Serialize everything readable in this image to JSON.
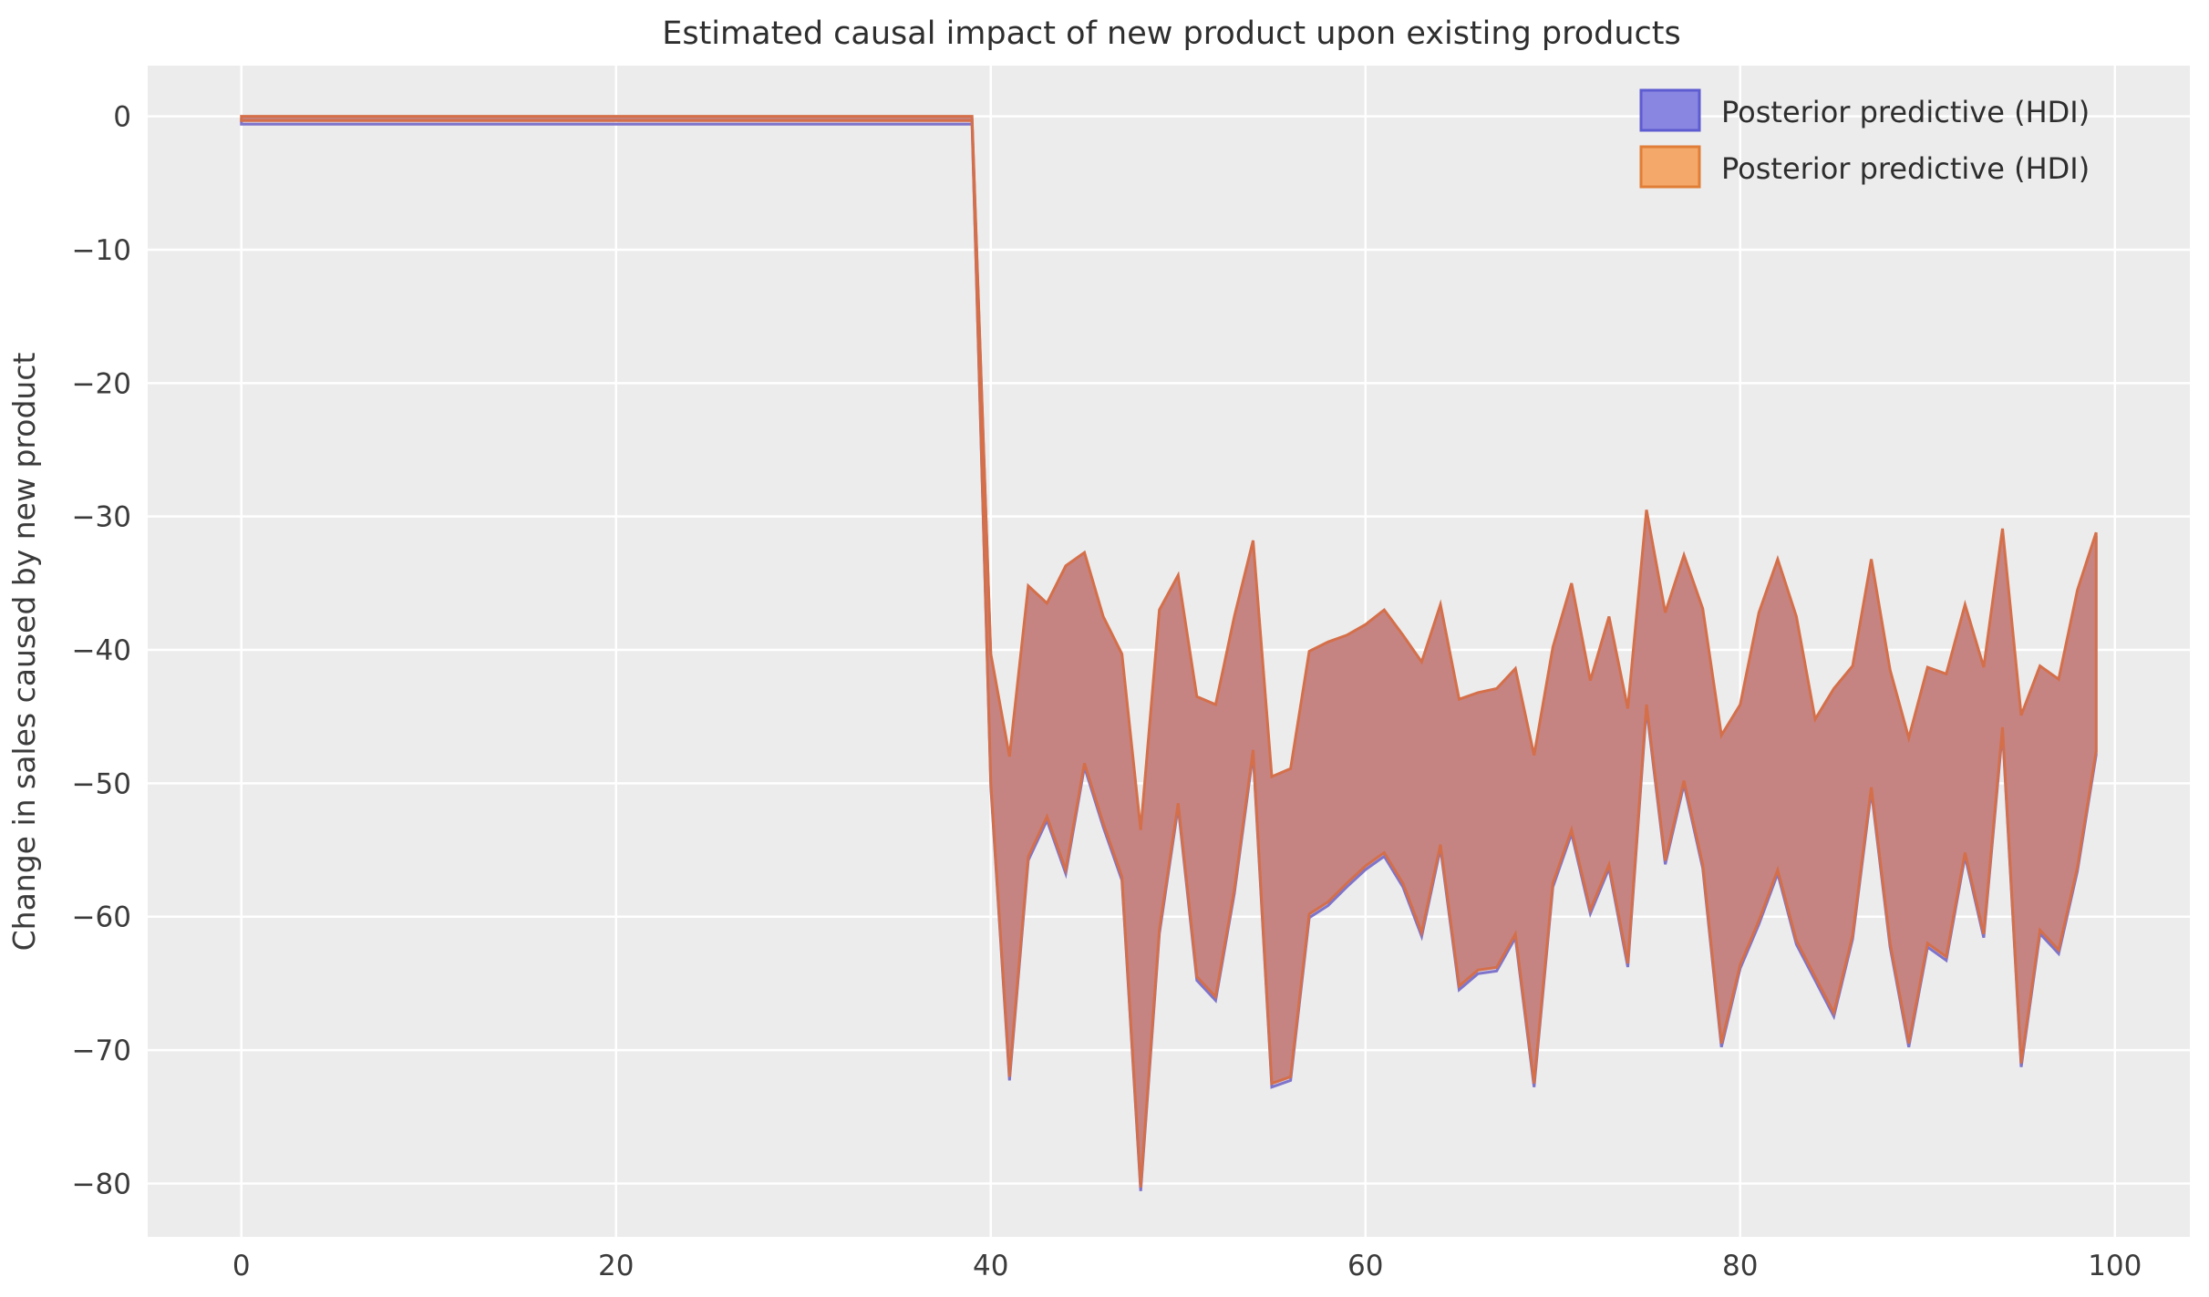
{
  "chart_data": {
    "type": "area",
    "title": "Estimated causal impact of new product upon existing products",
    "xlabel": "",
    "ylabel": "Change in sales caused by new product",
    "xticks": [
      0,
      20,
      40,
      60,
      80,
      100
    ],
    "yticks": [
      0,
      -10,
      -20,
      -30,
      -40,
      -50,
      -60,
      -70,
      -80
    ],
    "xlim": [
      -5,
      104
    ],
    "ylim": [
      -84,
      3.8
    ],
    "grid": true,
    "legend_position": "upper right",
    "legend": [
      {
        "label": "Posterior predictive (HDI)",
        "fill": "#8886e0",
        "edge": "#5e5cd1"
      },
      {
        "label": "Posterior predictive (HDI)",
        "fill": "#f4a869",
        "edge": "#e07e38"
      }
    ],
    "band": {
      "description": "Two overlapping HDI bands (blue and orange posterior predictive) that coincide, appearing rose-brown; flat at 0 before intervention at x=40, then shifted to roughly -30..-80 after.",
      "x": [
        0,
        1,
        2,
        3,
        4,
        5,
        6,
        7,
        8,
        9,
        10,
        11,
        12,
        13,
        14,
        15,
        16,
        17,
        18,
        19,
        20,
        21,
        22,
        23,
        24,
        25,
        26,
        27,
        28,
        29,
        30,
        31,
        32,
        33,
        34,
        35,
        36,
        37,
        38,
        39,
        40,
        41,
        42,
        43,
        44,
        45,
        46,
        47,
        48,
        49,
        50,
        51,
        52,
        53,
        54,
        55,
        56,
        57,
        58,
        59,
        60,
        61,
        62,
        63,
        64,
        65,
        66,
        67,
        68,
        69,
        70,
        71,
        72,
        73,
        74,
        75,
        76,
        77,
        78,
        79,
        80,
        81,
        82,
        83,
        84,
        85,
        86,
        87,
        88,
        89,
        90,
        91,
        92,
        93,
        94,
        95,
        96,
        97,
        98,
        99
      ],
      "upper": [
        0,
        0,
        0,
        0,
        0,
        0,
        0,
        0,
        0,
        0,
        0,
        0,
        0,
        0,
        0,
        0,
        0,
        0,
        0,
        0,
        0,
        0,
        0,
        0,
        0,
        0,
        0,
        0,
        0,
        0,
        0,
        0,
        0,
        0,
        0,
        0,
        0,
        0,
        0,
        0,
        -40.3,
        -48,
        -35.2,
        -36.5,
        -33.7,
        -32.7,
        -37.5,
        -40.3,
        -53.5,
        -37,
        -34.4,
        -43.5,
        -44.1,
        -37.5,
        -31.8,
        -49.5,
        -48.9,
        -40.1,
        -39.4,
        -38.9,
        -38.1,
        -37,
        -38.9,
        -40.9,
        -36.6,
        -43.7,
        -43.2,
        -42.9,
        -41.4,
        -47.9,
        -39.8,
        -35,
        -42.3,
        -37.5,
        -44.4,
        -29.5,
        -37.2,
        -32.9,
        -36.9,
        -46.4,
        -44.1,
        -37.2,
        -33.2,
        -37.5,
        -45.2,
        -42.9,
        -41.2,
        -33.2,
        -41.5,
        -46.6,
        -41.3,
        -41.8,
        -36.6,
        -41.3,
        -30.9,
        -44.9,
        -41.2,
        -42.2,
        -35.5,
        -31.2
      ],
      "lower": [
        -0.32,
        -0.32,
        -0.32,
        -0.32,
        -0.32,
        -0.32,
        -0.32,
        -0.32,
        -0.32,
        -0.32,
        -0.32,
        -0.32,
        -0.32,
        -0.32,
        -0.32,
        -0.32,
        -0.32,
        -0.32,
        -0.32,
        -0.32,
        -0.32,
        -0.32,
        -0.32,
        -0.32,
        -0.32,
        -0.32,
        -0.32,
        -0.32,
        -0.32,
        -0.32,
        -0.32,
        -0.32,
        -0.32,
        -0.32,
        -0.32,
        -0.32,
        -0.32,
        -0.32,
        -0.32,
        -0.32,
        -50,
        -72,
        -55.5,
        -52.5,
        -56.5,
        -48.5,
        -53,
        -57,
        -80.3,
        -61,
        -51.5,
        -64.5,
        -66,
        -58,
        -47.5,
        -72.5,
        -72,
        -59.8,
        -58.9,
        -57.5,
        -56.2,
        -55.2,
        -57.5,
        -61.2,
        -54.6,
        -65.2,
        -64,
        -63.8,
        -61.3,
        -72.5,
        -57.5,
        -53.5,
        -59.5,
        -56.1,
        -63.5,
        -44.1,
        -55.8,
        -49.8,
        -56.1,
        -69.5,
        -63.6,
        -60.3,
        -56.5,
        -61.8,
        -64.5,
        -67.2,
        -61.4,
        -50.3,
        -62,
        -69.5,
        -62,
        -63,
        -55.2,
        -61.3,
        -45.8,
        -71,
        -61,
        -62.5,
        -56.3,
        -47.6
      ]
    },
    "colors": {
      "axes_background": "#ececec",
      "grid": "#ffffff",
      "band_fill": "#c58482",
      "band_edge_orange": "#d46f4a",
      "band_edge_blue": "#7e74cb",
      "tick_text": "#3b3b3b",
      "title_text": "#2e2e2e"
    }
  }
}
